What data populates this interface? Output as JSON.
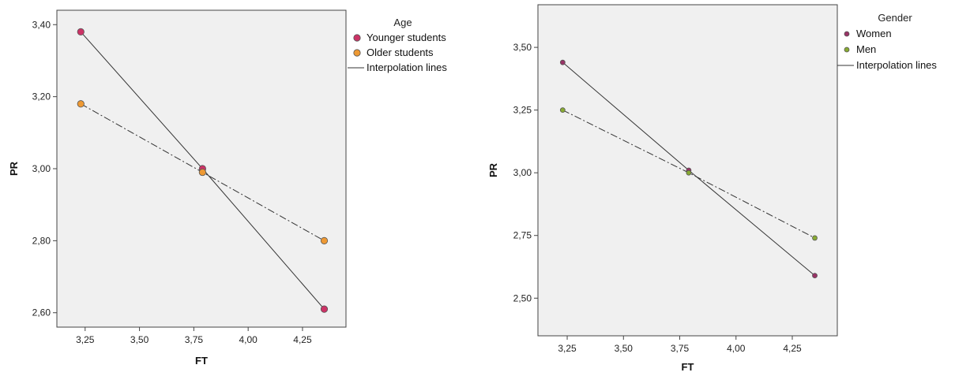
{
  "chart_data": [
    {
      "type": "line",
      "xlabel": "FT",
      "ylabel": "PR",
      "xlim": [
        3.12,
        4.45
      ],
      "ylim": [
        2.56,
        3.44
      ],
      "xticks": [
        "3,25",
        "3,50",
        "3,75",
        "4,00",
        "4,25"
      ],
      "xtick_values": [
        3.25,
        3.5,
        3.75,
        4.0,
        4.25
      ],
      "yticks": [
        "2,60",
        "2,80",
        "3,00",
        "3,20",
        "3,40"
      ],
      "ytick_values": [
        2.6,
        2.8,
        3.0,
        3.2,
        3.4
      ],
      "legend": {
        "title": "Age",
        "entries": [
          "Younger students",
          "Older students",
          "Interpolation lines"
        ],
        "placement": "right-outside-top"
      },
      "series": [
        {
          "name": "Younger students",
          "color": "#cc3366",
          "line": "solid",
          "x": [
            3.23,
            3.79,
            4.35
          ],
          "y": [
            3.38,
            3.0,
            2.61
          ]
        },
        {
          "name": "Older students",
          "color": "#ee9933",
          "line": "dashdot",
          "x": [
            3.23,
            3.79,
            4.35
          ],
          "y": [
            3.18,
            2.99,
            2.8
          ]
        }
      ],
      "grid": false
    },
    {
      "type": "line",
      "xlabel": "FT",
      "ylabel": "PR",
      "xlim": [
        3.12,
        4.45
      ],
      "ylim": [
        2.35,
        3.67
      ],
      "xticks": [
        "3,25",
        "3,50",
        "3,75",
        "4,00",
        "4,25"
      ],
      "xtick_values": [
        3.25,
        3.5,
        3.75,
        4.0,
        4.25
      ],
      "yticks": [
        "2,50",
        "2,75",
        "3,00",
        "3,25",
        "3,50"
      ],
      "ytick_values": [
        2.5,
        2.75,
        3.0,
        3.25,
        3.5
      ],
      "legend": {
        "title": "Gender",
        "entries": [
          "Women",
          "Men",
          "Interpolation lines"
        ],
        "placement": "right-outside-top"
      },
      "series": [
        {
          "name": "Women",
          "color": "#993366",
          "line": "solid",
          "x": [
            3.23,
            3.79,
            4.35
          ],
          "y": [
            3.44,
            3.01,
            2.59
          ]
        },
        {
          "name": "Men",
          "color": "#88aa33",
          "line": "dashdot",
          "x": [
            3.23,
            3.79,
            4.35
          ],
          "y": [
            3.25,
            3.0,
            2.74
          ]
        }
      ],
      "grid": false
    }
  ]
}
